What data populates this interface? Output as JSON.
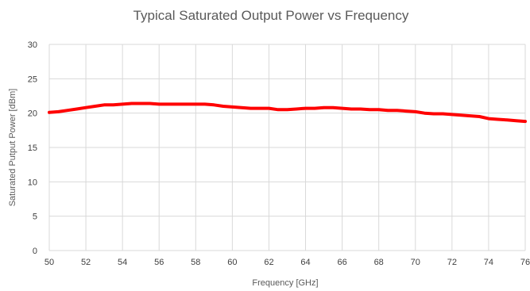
{
  "chart_data": {
    "type": "line",
    "title": "Typical Saturated Output Power vs Frequency",
    "xlabel": "Frequency [GHz]",
    "ylabel": "Saturated Putput Power [dBm]",
    "xlim": [
      50,
      76
    ],
    "ylim": [
      0,
      30
    ],
    "xticks": [
      50,
      52,
      54,
      56,
      58,
      60,
      62,
      64,
      66,
      68,
      70,
      72,
      74,
      76
    ],
    "yticks": [
      0,
      5,
      10,
      15,
      20,
      25,
      30
    ],
    "grid": true,
    "legend": "none",
    "series": [
      {
        "color": "#ff0000",
        "x": [
          50,
          50.5,
          51,
          51.5,
          52,
          52.5,
          53,
          53.5,
          54,
          54.5,
          55,
          55.5,
          56,
          56.5,
          57,
          57.5,
          58,
          58.5,
          59,
          59.5,
          60,
          60.5,
          61,
          61.5,
          62,
          62.5,
          63,
          63.5,
          64,
          64.5,
          65,
          65.5,
          66,
          66.5,
          67,
          67.5,
          68,
          68.5,
          69,
          69.5,
          70,
          70.5,
          71,
          71.5,
          72,
          72.5,
          73,
          73.5,
          74,
          74.5,
          75,
          75.5,
          76
        ],
        "y": [
          20.1,
          20.2,
          20.4,
          20.6,
          20.8,
          21.0,
          21.2,
          21.2,
          21.3,
          21.4,
          21.4,
          21.4,
          21.3,
          21.3,
          21.3,
          21.3,
          21.3,
          21.3,
          21.2,
          21.0,
          20.9,
          20.8,
          20.7,
          20.7,
          20.7,
          20.5,
          20.5,
          20.6,
          20.7,
          20.7,
          20.8,
          20.8,
          20.7,
          20.6,
          20.6,
          20.5,
          20.5,
          20.4,
          20.4,
          20.3,
          20.2,
          20.0,
          19.9,
          19.9,
          19.8,
          19.7,
          19.6,
          19.5,
          19.2,
          19.1,
          19.0,
          18.9,
          18.8
        ]
      }
    ]
  }
}
